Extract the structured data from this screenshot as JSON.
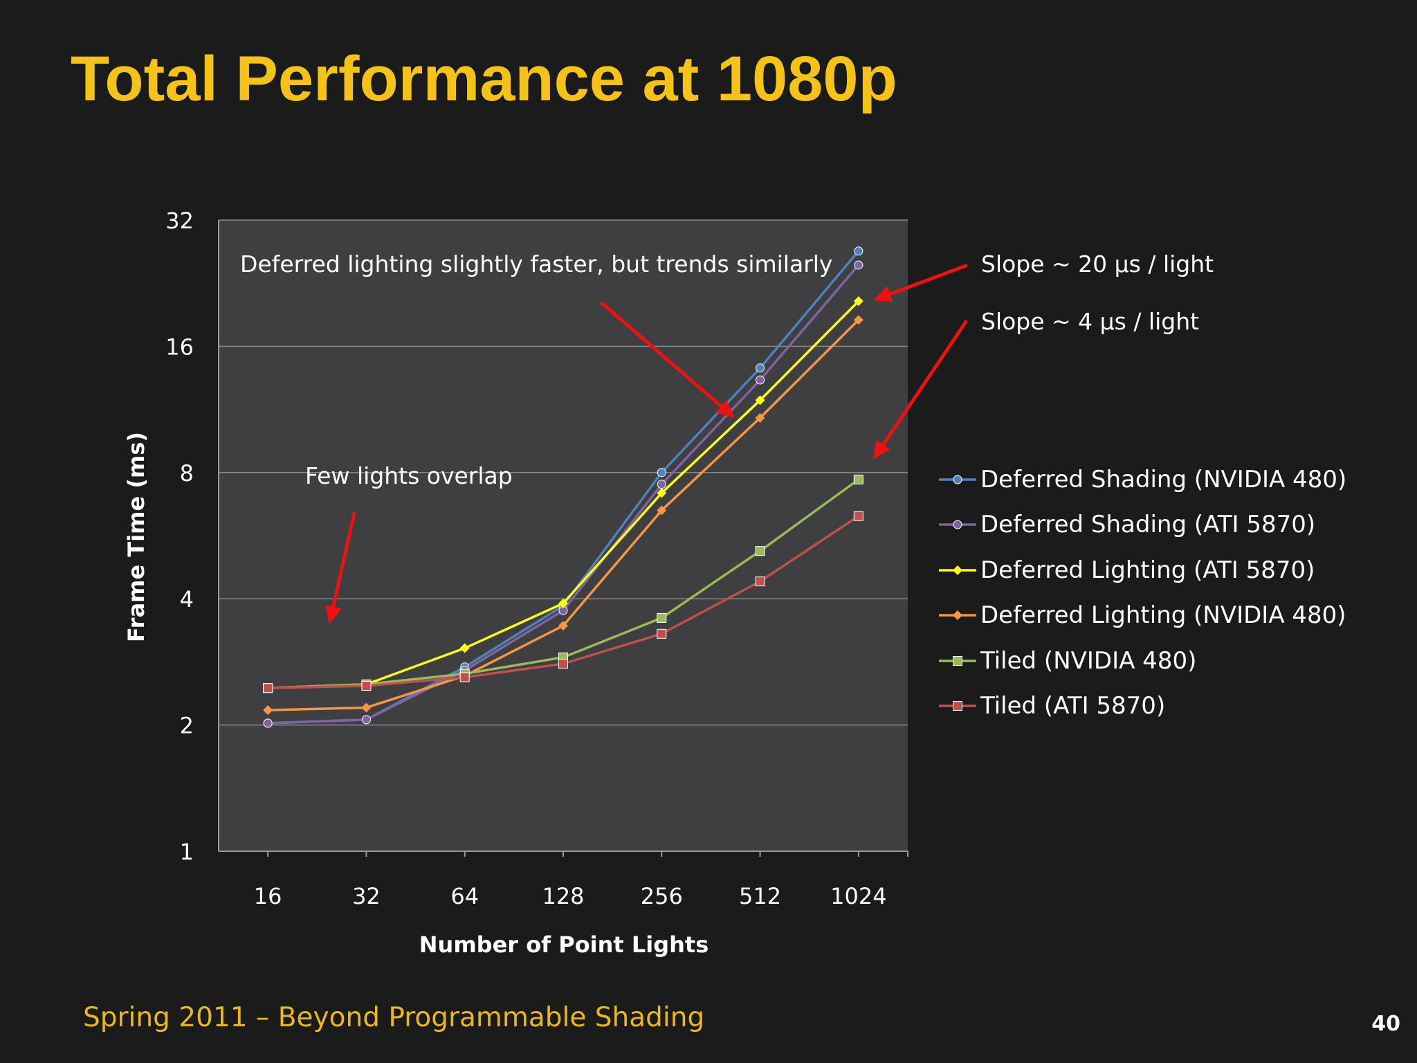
{
  "slide": {
    "title": "Total Performance at 1080p",
    "footer": "Spring 2011 – Beyond Programmable Shading",
    "page_number": "40"
  },
  "annotations": {
    "deferred_note": "Deferred lighting slightly faster, but trends similarly",
    "slope_20": "Slope ~ 20 µs / light",
    "slope_4": "Slope ~ 4 µs / light",
    "few_lights": "Few lights overlap"
  },
  "chart_data": {
    "type": "line",
    "title": "",
    "xlabel": "Number of Point Lights",
    "ylabel": "Frame Time (ms)",
    "y_scale": "log2",
    "ylim": [
      1,
      32
    ],
    "yticks": [
      "1",
      "2",
      "4",
      "8",
      "16",
      "32"
    ],
    "categories": [
      "16",
      "32",
      "64",
      "128",
      "256",
      "512",
      "1024"
    ],
    "grid": true,
    "legend_position": "right",
    "series": [
      {
        "name": "Deferred Shading (NVIDIA 480)",
        "color": "#4f81bd",
        "marker": "circle",
        "values": [
          2.02,
          2.06,
          2.75,
          3.85,
          8.0,
          14.2,
          27.0
        ]
      },
      {
        "name": "Deferred Shading (ATI 5870)",
        "color": "#8064a2",
        "marker": "circle",
        "values": [
          2.02,
          2.06,
          2.7,
          3.75,
          7.5,
          13.3,
          25.0
        ]
      },
      {
        "name": "Deferred Lighting (ATI 5870)",
        "color": "#ffff1a",
        "marker": "diamond",
        "values": [
          2.45,
          2.5,
          3.05,
          3.9,
          7.15,
          11.9,
          20.5
        ]
      },
      {
        "name": "Deferred Lighting (NVIDIA 480)",
        "color": "#f79646",
        "marker": "diamond",
        "values": [
          2.17,
          2.2,
          2.62,
          3.45,
          6.5,
          10.8,
          18.5
        ]
      },
      {
        "name": "Tiled (NVIDIA 480)",
        "color": "#9bbb59",
        "marker": "square",
        "values": [
          2.45,
          2.5,
          2.65,
          2.9,
          3.6,
          5.2,
          7.7
        ]
      },
      {
        "name": "Tiled (ATI 5870)",
        "color": "#c0504d",
        "marker": "square",
        "values": [
          2.45,
          2.48,
          2.6,
          2.8,
          3.3,
          4.4,
          6.3
        ]
      }
    ]
  }
}
